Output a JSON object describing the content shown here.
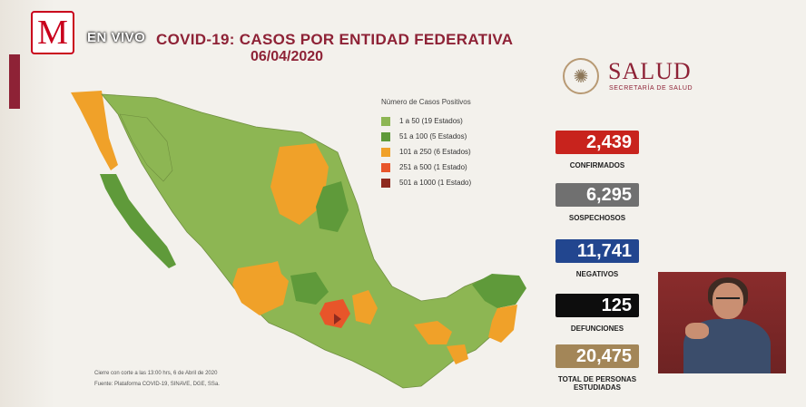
{
  "broadcast": {
    "logo_letter": "M",
    "live_label": "EN VIVO"
  },
  "header": {
    "title": "COVID-19: CASOS POR ENTIDAD FEDERATIVA",
    "date": "06/04/2020"
  },
  "brand": {
    "name": "SALUD",
    "subtitle": "SECRETARÍA DE SALUD"
  },
  "legend": {
    "title": "Número de Casos Positivos",
    "items": [
      {
        "label": "1 a   50  (19 Estados)",
        "color": "#8db653"
      },
      {
        "label": "51 a  100  (5 Estados)",
        "color": "#5f9a3a"
      },
      {
        "label": "101 a  250  (6 Estados)",
        "color": "#f0a129"
      },
      {
        "label": "251 a  500  (1 Estado)",
        "color": "#e8552a"
      },
      {
        "label": "501 a 1000  (1 Estado)",
        "color": "#8e2a1f"
      }
    ]
  },
  "footnotes": {
    "cutoff": "Cierre con corte a las 13:00 hrs, 6 de Abril de 2020",
    "source": "Fuente: Plataforma COVID-19, SINAVE, DGE, SSa."
  },
  "stats": [
    {
      "value": "2,439",
      "label": "CONFIRMADOS",
      "color": "#c8231d"
    },
    {
      "value": "6,295",
      "label": "SOSPECHOSOS",
      "color": "#707070"
    },
    {
      "value": "11,741",
      "label": "NEGATIVOS",
      "color": "#22468f"
    },
    {
      "value": "125",
      "label": "DEFUNCIONES",
      "color": "#0d0d0d"
    },
    {
      "value": "20,475",
      "label": "TOTAL DE PERSONAS ESTUDIADAS",
      "color": "#a38658"
    }
  ],
  "map_colors": {
    "base": "#8db653",
    "dark": "#5f9a3a",
    "orange": "#f0a129",
    "red": "#e8552a",
    "darkred": "#8e2a1f"
  }
}
